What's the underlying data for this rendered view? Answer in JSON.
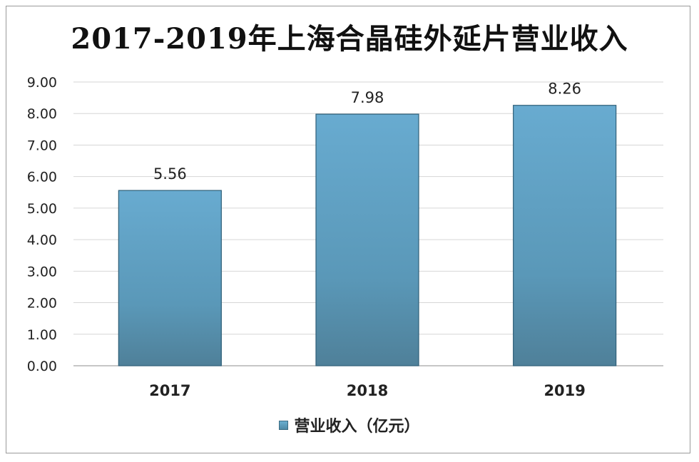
{
  "chart_data": {
    "type": "bar",
    "title": "2017-2019年上海合晶硅外延片营业收入",
    "categories": [
      "2017",
      "2018",
      "2019"
    ],
    "series": [
      {
        "name": "营业收入（亿元）",
        "values": [
          5.56,
          7.98,
          8.26
        ]
      }
    ],
    "data_labels": [
      "5.56",
      "7.98",
      "8.26"
    ],
    "ylim": [
      0,
      9
    ],
    "yticks": [
      "0.00",
      "1.00",
      "2.00",
      "3.00",
      "4.00",
      "5.00",
      "6.00",
      "7.00",
      "8.00",
      "9.00"
    ],
    "grid": true,
    "legend_position": "bottom",
    "bar_color": "#5a9cbd",
    "bar_border": "#2f5f78"
  }
}
